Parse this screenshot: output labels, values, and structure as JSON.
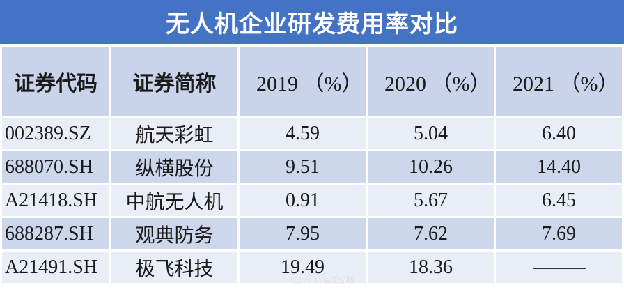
{
  "title": "无人机企业研发费用率对比",
  "headers": {
    "code": "证券代码",
    "name": "证券简称",
    "y2019": "2019 （%）",
    "y2020": "2020 （%）",
    "y2021": "2021 （%）"
  },
  "rows": [
    {
      "code": "002389.SZ",
      "name": "航天彩虹",
      "v2019": "4.59",
      "v2020": "5.04",
      "v2021": "6.40"
    },
    {
      "code": "688070.SH",
      "name": "纵横股份",
      "v2019": "9.51",
      "v2020": "10.26",
      "v2021": "14.40"
    },
    {
      "code": "A21418.SH",
      "name": "中航无人机",
      "v2019": "0.91",
      "v2020": "5.67",
      "v2021": "6.45"
    },
    {
      "code": "688287.SH",
      "name": "观典防务",
      "v2019": "7.95",
      "v2020": "7.62",
      "v2021": "7.69"
    },
    {
      "code": "A21491.SH",
      "name": "极飞科技",
      "v2019": "19.49",
      "v2020": "18.36",
      "v2021": ""
    }
  ],
  "watermark": "Chi na2au",
  "colors": {
    "title_bg": "#4472c4",
    "header_bg": "#c9d4ea",
    "row_light": "#e9edf5",
    "row_dark": "#cdd7eb"
  }
}
